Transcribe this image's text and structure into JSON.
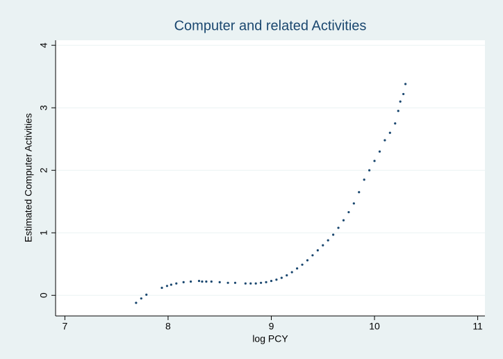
{
  "chart_data": {
    "type": "scatter",
    "title": "Computer and related Activities",
    "x_label": "log PCY",
    "y_label": "Estimated Computer Activities",
    "series": [
      {
        "color": "#1a476f",
        "x": [
          7.69,
          7.74,
          7.79,
          7.94,
          7.99,
          8.03,
          8.08,
          8.15,
          8.22,
          8.3,
          8.33,
          8.37,
          8.42,
          8.5,
          8.58,
          8.65,
          8.75,
          8.8,
          8.85,
          8.9,
          8.95,
          9.0,
          9.05,
          9.1,
          9.15,
          9.2,
          9.25,
          9.3,
          9.35,
          9.4,
          9.45,
          9.5,
          9.55,
          9.6,
          9.65,
          9.7,
          9.75,
          9.8,
          9.85,
          9.9,
          9.95,
          10.0,
          10.05,
          10.1,
          10.15,
          10.2,
          10.23,
          10.25,
          10.28,
          10.3
        ],
        "values": [
          -0.12,
          -0.05,
          0.01,
          0.12,
          0.15,
          0.17,
          0.19,
          0.21,
          0.22,
          0.23,
          0.22,
          0.22,
          0.22,
          0.21,
          0.2,
          0.2,
          0.19,
          0.19,
          0.19,
          0.2,
          0.21,
          0.23,
          0.25,
          0.28,
          0.32,
          0.37,
          0.43,
          0.49,
          0.56,
          0.64,
          0.72,
          0.8,
          0.88,
          0.97,
          1.08,
          1.2,
          1.33,
          1.47,
          1.65,
          1.85,
          2.0,
          2.15,
          2.3,
          2.48,
          2.6,
          2.75,
          2.95,
          3.1,
          3.22,
          3.38
        ]
      }
    ],
    "xlim": [
      6.91,
      11.07
    ],
    "xticks": [
      7,
      8,
      9,
      10,
      11
    ],
    "ylim": [
      -0.33,
      4.08
    ],
    "yticks": [
      0,
      1,
      2,
      3,
      4
    ],
    "grid": true
  }
}
